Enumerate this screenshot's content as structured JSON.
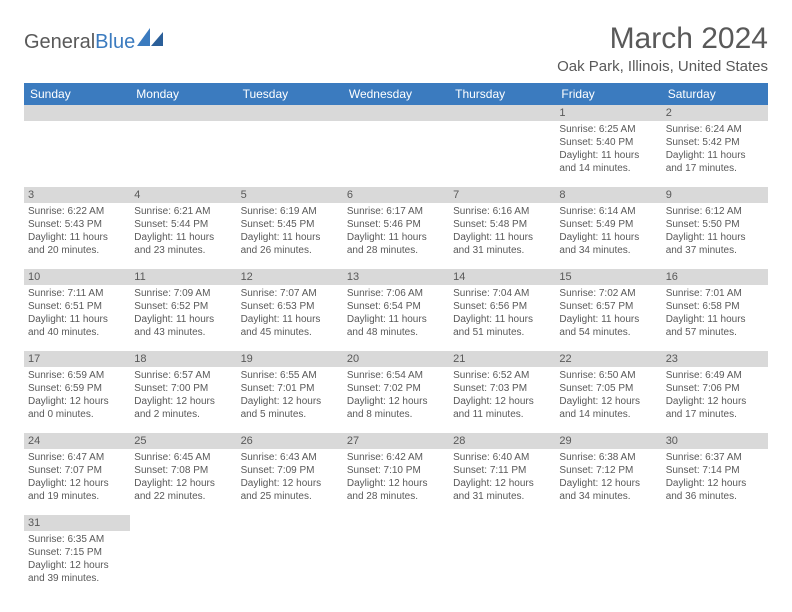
{
  "logo": {
    "textGeneral": "General",
    "textBlue": "Blue"
  },
  "title": "March 2024",
  "location": "Oak Park, Illinois, United States",
  "weekdays": [
    "Sunday",
    "Monday",
    "Tuesday",
    "Wednesday",
    "Thursday",
    "Friday",
    "Saturday"
  ],
  "colors": {
    "headerBg": "#3b7bbf",
    "headerText": "#ffffff",
    "dayNumBg": "#d9d9d9",
    "text": "#595959",
    "rowBorder": "#3b7bbf"
  },
  "weeks": [
    [
      null,
      null,
      null,
      null,
      null,
      {
        "n": "1",
        "sr": "Sunrise: 6:25 AM",
        "ss": "Sunset: 5:40 PM",
        "dl1": "Daylight: 11 hours",
        "dl2": "and 14 minutes."
      },
      {
        "n": "2",
        "sr": "Sunrise: 6:24 AM",
        "ss": "Sunset: 5:42 PM",
        "dl1": "Daylight: 11 hours",
        "dl2": "and 17 minutes."
      }
    ],
    [
      {
        "n": "3",
        "sr": "Sunrise: 6:22 AM",
        "ss": "Sunset: 5:43 PM",
        "dl1": "Daylight: 11 hours",
        "dl2": "and 20 minutes."
      },
      {
        "n": "4",
        "sr": "Sunrise: 6:21 AM",
        "ss": "Sunset: 5:44 PM",
        "dl1": "Daylight: 11 hours",
        "dl2": "and 23 minutes."
      },
      {
        "n": "5",
        "sr": "Sunrise: 6:19 AM",
        "ss": "Sunset: 5:45 PM",
        "dl1": "Daylight: 11 hours",
        "dl2": "and 26 minutes."
      },
      {
        "n": "6",
        "sr": "Sunrise: 6:17 AM",
        "ss": "Sunset: 5:46 PM",
        "dl1": "Daylight: 11 hours",
        "dl2": "and 28 minutes."
      },
      {
        "n": "7",
        "sr": "Sunrise: 6:16 AM",
        "ss": "Sunset: 5:48 PM",
        "dl1": "Daylight: 11 hours",
        "dl2": "and 31 minutes."
      },
      {
        "n": "8",
        "sr": "Sunrise: 6:14 AM",
        "ss": "Sunset: 5:49 PM",
        "dl1": "Daylight: 11 hours",
        "dl2": "and 34 minutes."
      },
      {
        "n": "9",
        "sr": "Sunrise: 6:12 AM",
        "ss": "Sunset: 5:50 PM",
        "dl1": "Daylight: 11 hours",
        "dl2": "and 37 minutes."
      }
    ],
    [
      {
        "n": "10",
        "sr": "Sunrise: 7:11 AM",
        "ss": "Sunset: 6:51 PM",
        "dl1": "Daylight: 11 hours",
        "dl2": "and 40 minutes."
      },
      {
        "n": "11",
        "sr": "Sunrise: 7:09 AM",
        "ss": "Sunset: 6:52 PM",
        "dl1": "Daylight: 11 hours",
        "dl2": "and 43 minutes."
      },
      {
        "n": "12",
        "sr": "Sunrise: 7:07 AM",
        "ss": "Sunset: 6:53 PM",
        "dl1": "Daylight: 11 hours",
        "dl2": "and 45 minutes."
      },
      {
        "n": "13",
        "sr": "Sunrise: 7:06 AM",
        "ss": "Sunset: 6:54 PM",
        "dl1": "Daylight: 11 hours",
        "dl2": "and 48 minutes."
      },
      {
        "n": "14",
        "sr": "Sunrise: 7:04 AM",
        "ss": "Sunset: 6:56 PM",
        "dl1": "Daylight: 11 hours",
        "dl2": "and 51 minutes."
      },
      {
        "n": "15",
        "sr": "Sunrise: 7:02 AM",
        "ss": "Sunset: 6:57 PM",
        "dl1": "Daylight: 11 hours",
        "dl2": "and 54 minutes."
      },
      {
        "n": "16",
        "sr": "Sunrise: 7:01 AM",
        "ss": "Sunset: 6:58 PM",
        "dl1": "Daylight: 11 hours",
        "dl2": "and 57 minutes."
      }
    ],
    [
      {
        "n": "17",
        "sr": "Sunrise: 6:59 AM",
        "ss": "Sunset: 6:59 PM",
        "dl1": "Daylight: 12 hours",
        "dl2": "and 0 minutes."
      },
      {
        "n": "18",
        "sr": "Sunrise: 6:57 AM",
        "ss": "Sunset: 7:00 PM",
        "dl1": "Daylight: 12 hours",
        "dl2": "and 2 minutes."
      },
      {
        "n": "19",
        "sr": "Sunrise: 6:55 AM",
        "ss": "Sunset: 7:01 PM",
        "dl1": "Daylight: 12 hours",
        "dl2": "and 5 minutes."
      },
      {
        "n": "20",
        "sr": "Sunrise: 6:54 AM",
        "ss": "Sunset: 7:02 PM",
        "dl1": "Daylight: 12 hours",
        "dl2": "and 8 minutes."
      },
      {
        "n": "21",
        "sr": "Sunrise: 6:52 AM",
        "ss": "Sunset: 7:03 PM",
        "dl1": "Daylight: 12 hours",
        "dl2": "and 11 minutes."
      },
      {
        "n": "22",
        "sr": "Sunrise: 6:50 AM",
        "ss": "Sunset: 7:05 PM",
        "dl1": "Daylight: 12 hours",
        "dl2": "and 14 minutes."
      },
      {
        "n": "23",
        "sr": "Sunrise: 6:49 AM",
        "ss": "Sunset: 7:06 PM",
        "dl1": "Daylight: 12 hours",
        "dl2": "and 17 minutes."
      }
    ],
    [
      {
        "n": "24",
        "sr": "Sunrise: 6:47 AM",
        "ss": "Sunset: 7:07 PM",
        "dl1": "Daylight: 12 hours",
        "dl2": "and 19 minutes."
      },
      {
        "n": "25",
        "sr": "Sunrise: 6:45 AM",
        "ss": "Sunset: 7:08 PM",
        "dl1": "Daylight: 12 hours",
        "dl2": "and 22 minutes."
      },
      {
        "n": "26",
        "sr": "Sunrise: 6:43 AM",
        "ss": "Sunset: 7:09 PM",
        "dl1": "Daylight: 12 hours",
        "dl2": "and 25 minutes."
      },
      {
        "n": "27",
        "sr": "Sunrise: 6:42 AM",
        "ss": "Sunset: 7:10 PM",
        "dl1": "Daylight: 12 hours",
        "dl2": "and 28 minutes."
      },
      {
        "n": "28",
        "sr": "Sunrise: 6:40 AM",
        "ss": "Sunset: 7:11 PM",
        "dl1": "Daylight: 12 hours",
        "dl2": "and 31 minutes."
      },
      {
        "n": "29",
        "sr": "Sunrise: 6:38 AM",
        "ss": "Sunset: 7:12 PM",
        "dl1": "Daylight: 12 hours",
        "dl2": "and 34 minutes."
      },
      {
        "n": "30",
        "sr": "Sunrise: 6:37 AM",
        "ss": "Sunset: 7:14 PM",
        "dl1": "Daylight: 12 hours",
        "dl2": "and 36 minutes."
      }
    ],
    [
      {
        "n": "31",
        "sr": "Sunrise: 6:35 AM",
        "ss": "Sunset: 7:15 PM",
        "dl1": "Daylight: 12 hours",
        "dl2": "and 39 minutes."
      },
      null,
      null,
      null,
      null,
      null,
      null
    ]
  ]
}
